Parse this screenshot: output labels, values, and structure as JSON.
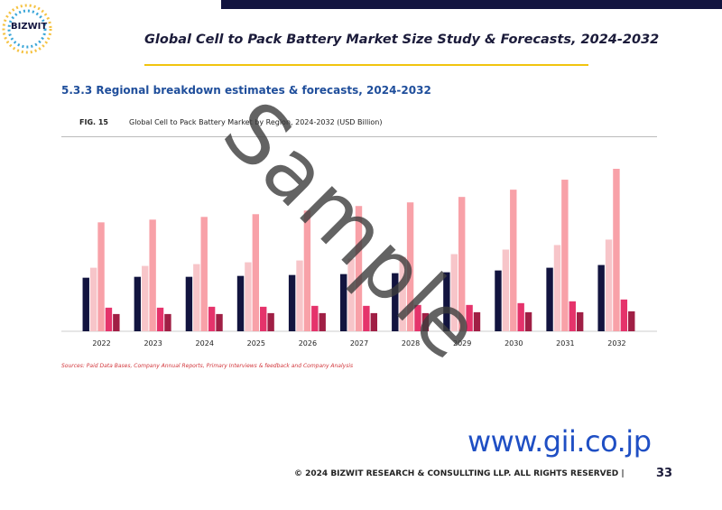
{
  "header": {
    "logo": "BIZWIT",
    "title": "Global Cell to Pack Battery Market Size Study & Forecasts, 2024-2032"
  },
  "section": "5.3.3 Regional breakdown estimates & forecasts, 2024-2032",
  "figure_label": "FIG. 15",
  "chart_data": {
    "type": "bar",
    "title": "Global Cell to Pack Battery Market by Region, 2024-2032 (USD Billion)",
    "categories": [
      "2022",
      "2023",
      "2024",
      "2025",
      "2026",
      "2027",
      "2028",
      "2029",
      "2030",
      "2031",
      "2032"
    ],
    "series": [
      {
        "color": "#12143f",
        "values": [
          59,
          60,
          60,
          61,
          62,
          63,
          64,
          65,
          67,
          70,
          73
        ]
      },
      {
        "color": "#f7c5c9",
        "values": [
          70,
          72,
          74,
          76,
          78,
          80,
          82,
          85,
          90,
          95,
          101
        ]
      },
      {
        "color": "#f8a1a8",
        "values": [
          120,
          123,
          126,
          129,
          133,
          138,
          142,
          148,
          156,
          167,
          179
        ]
      },
      {
        "color": "#e5336b",
        "values": [
          26,
          26,
          27,
          27,
          28,
          28,
          29,
          29,
          31,
          33,
          35
        ]
      },
      {
        "color": "#a01f45",
        "values": [
          19,
          19,
          19,
          20,
          20,
          20,
          20,
          21,
          21,
          21,
          22
        ]
      }
    ]
  },
  "source": "Sources: Paid Data Bases, Company Annual Reports, Primary Interviews & feedback and Company Analysis",
  "watermark": "Sample",
  "website": "www.gii.co.jp",
  "footer": {
    "copyright": "© 2024 BIZWIT RESEARCH & CONSULLTING LLP. ALL RIGHTS RESERVED |",
    "page": "33"
  }
}
